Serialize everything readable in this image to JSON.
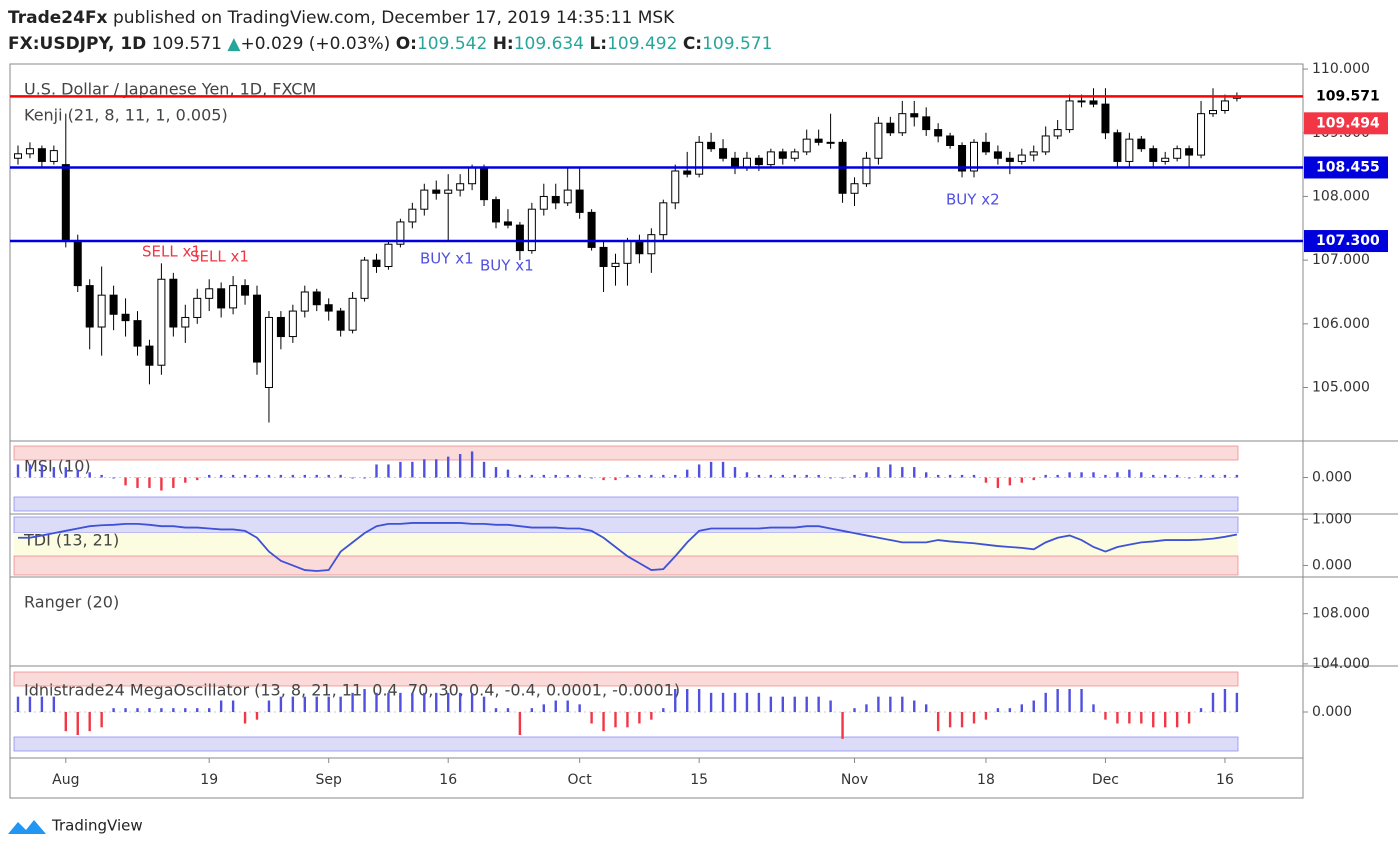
{
  "header": {
    "line1_author": "Trade24Fx",
    "line1_rest": "published on TradingView.com, December 17, 2019 14:35:11 MSK",
    "symbol": "FX:USDJPY, 1D",
    "last": "109.571",
    "arrow": "▲",
    "change": "+0.029 (+0.03%)",
    "o_label": "O:",
    "o": "109.542",
    "h_label": "H:",
    "h": "109.634",
    "l_label": "L:",
    "l": "109.492",
    "c_label": "C:",
    "c": "109.571"
  },
  "footer": {
    "brand": "TradingView"
  },
  "chart_data": [
    {
      "type": "candlestick",
      "title": "U.S. Dollar / Japanese Yen, 1D, FXCM",
      "subtitle": "Kenji (21, 8, 11, 1, 0.005)",
      "ylim": [
        104.16,
        110.08
      ],
      "yticks": [
        {
          "value": 110,
          "label": "110.000"
        },
        {
          "value": 109,
          "label": "109.000"
        },
        {
          "value": 108,
          "label": "108.000"
        },
        {
          "value": 107,
          "label": "107.000"
        },
        {
          "value": 106,
          "label": "106.000"
        },
        {
          "value": 105,
          "label": "105.000"
        }
      ],
      "xticks": [
        {
          "value": 4,
          "label": "Aug"
        },
        {
          "value": 16,
          "label": "19"
        },
        {
          "value": 26,
          "label": "Sep"
        },
        {
          "value": 36,
          "label": "16"
        },
        {
          "value": 47,
          "label": "Oct"
        },
        {
          "value": 57,
          "label": "15"
        },
        {
          "value": 70,
          "label": "Nov"
        },
        {
          "value": 81,
          "label": "18"
        },
        {
          "value": 91,
          "label": "Dec"
        },
        {
          "value": 101,
          "label": "16"
        }
      ],
      "up_color": "#ffffff",
      "down_color": "#000000",
      "levels": [
        {
          "value": 109.571,
          "label": "109.571",
          "color": "#ff0000",
          "badge": "#ffffff",
          "text_color": "#000000"
        },
        {
          "value": 108.455,
          "label": "108.455",
          "color": "#0000dd",
          "badge": "#0000dd",
          "text_color": "#ffffff"
        },
        {
          "value": 107.3,
          "label": "107.300",
          "color": "#0000dd",
          "badge": "#0000dd",
          "text_color": "#ffffff"
        }
      ],
      "badges": [
        {
          "value": 109.494,
          "label": "109.494",
          "badge": "#f23645",
          "text_color": "#ffffff"
        }
      ],
      "annotations": [
        {
          "text": "SELL x1",
          "color": "#f23645"
        },
        {
          "text": "SELL x1",
          "color": "#f23645"
        },
        {
          "text": "BUY x1",
          "color": "#5050e0"
        },
        {
          "text": "BUY x1",
          "color": "#5050e0"
        },
        {
          "text": "BUY x2",
          "color": "#5050e0"
        }
      ],
      "ohlc": [
        [
          108.6,
          108.8,
          108.5,
          108.67
        ],
        [
          108.67,
          108.85,
          108.6,
          108.75
        ],
        [
          108.75,
          108.8,
          108.45,
          108.55
        ],
        [
          108.55,
          108.8,
          108.5,
          108.72
        ],
        [
          108.5,
          109.3,
          107.2,
          107.3
        ],
        [
          107.3,
          107.4,
          106.5,
          106.6
        ],
        [
          106.6,
          106.7,
          105.6,
          105.95
        ],
        [
          105.95,
          106.9,
          105.5,
          106.45
        ],
        [
          106.45,
          106.6,
          105.9,
          106.15
        ],
        [
          106.15,
          106.4,
          105.8,
          106.05
        ],
        [
          106.05,
          106.2,
          105.5,
          105.65
        ],
        [
          105.65,
          105.75,
          105.05,
          105.35
        ],
        [
          105.35,
          106.95,
          105.2,
          106.7
        ],
        [
          106.7,
          106.8,
          105.8,
          105.95
        ],
        [
          105.95,
          106.3,
          105.7,
          106.1
        ],
        [
          106.1,
          106.55,
          106.0,
          106.4
        ],
        [
          106.4,
          106.7,
          106.2,
          106.55
        ],
        [
          106.55,
          106.65,
          106.1,
          106.25
        ],
        [
          106.25,
          106.75,
          106.15,
          106.6
        ],
        [
          106.6,
          106.7,
          106.3,
          106.45
        ],
        [
          106.45,
          106.6,
          105.2,
          105.4
        ],
        [
          105.0,
          106.2,
          104.45,
          106.1
        ],
        [
          106.1,
          106.2,
          105.6,
          105.8
        ],
        [
          105.8,
          106.3,
          105.7,
          106.2
        ],
        [
          106.2,
          106.6,
          106.1,
          106.5
        ],
        [
          106.5,
          106.55,
          106.2,
          106.3
        ],
        [
          106.3,
          106.4,
          106.05,
          106.2
        ],
        [
          106.2,
          106.25,
          105.8,
          105.9
        ],
        [
          105.9,
          106.5,
          105.85,
          106.4
        ],
        [
          106.4,
          107.05,
          106.35,
          107.0
        ],
        [
          107.0,
          107.1,
          106.8,
          106.9
        ],
        [
          106.9,
          107.3,
          106.85,
          107.25
        ],
        [
          107.25,
          107.65,
          107.2,
          107.6
        ],
        [
          107.6,
          107.9,
          107.5,
          107.8
        ],
        [
          107.8,
          108.2,
          107.7,
          108.1
        ],
        [
          108.1,
          108.25,
          107.95,
          108.05
        ],
        [
          108.05,
          108.35,
          107.3,
          108.1
        ],
        [
          108.1,
          108.35,
          108.0,
          108.2
        ],
        [
          108.2,
          108.5,
          108.1,
          108.45
        ],
        [
          108.45,
          108.5,
          107.85,
          107.95
        ],
        [
          107.95,
          108.0,
          107.5,
          107.6
        ],
        [
          107.6,
          107.8,
          107.5,
          107.55
        ],
        [
          107.55,
          107.6,
          107.0,
          107.15
        ],
        [
          107.15,
          107.9,
          107.1,
          107.8
        ],
        [
          107.8,
          108.2,
          107.7,
          108.0
        ],
        [
          108.0,
          108.2,
          107.8,
          107.9
        ],
        [
          107.9,
          108.45,
          107.85,
          108.1
        ],
        [
          108.1,
          108.45,
          107.65,
          107.75
        ],
        [
          107.75,
          107.8,
          107.15,
          107.2
        ],
        [
          107.2,
          107.3,
          106.5,
          106.9
        ],
        [
          106.9,
          107.1,
          106.6,
          106.95
        ],
        [
          106.95,
          107.35,
          106.6,
          107.3
        ],
        [
          107.3,
          107.4,
          106.95,
          107.1
        ],
        [
          107.1,
          107.5,
          106.8,
          107.4
        ],
        [
          107.4,
          107.95,
          107.3,
          107.9
        ],
        [
          107.9,
          108.5,
          107.8,
          108.4
        ],
        [
          108.4,
          108.7,
          108.3,
          108.35
        ],
        [
          108.35,
          108.95,
          108.3,
          108.85
        ],
        [
          108.85,
          109.0,
          108.7,
          108.75
        ],
        [
          108.75,
          108.9,
          108.55,
          108.6
        ],
        [
          108.6,
          108.7,
          108.35,
          108.45
        ],
        [
          108.45,
          108.7,
          108.4,
          108.6
        ],
        [
          108.6,
          108.65,
          108.4,
          108.5
        ],
        [
          108.5,
          108.75,
          108.45,
          108.7
        ],
        [
          108.7,
          108.75,
          108.5,
          108.6
        ],
        [
          108.6,
          108.75,
          108.55,
          108.7
        ],
        [
          108.7,
          109.05,
          108.65,
          108.9
        ],
        [
          108.9,
          109.05,
          108.8,
          108.85
        ],
        [
          108.85,
          109.3,
          108.75,
          108.85
        ],
        [
          108.85,
          108.9,
          107.9,
          108.05
        ],
        [
          108.05,
          108.3,
          107.85,
          108.2
        ],
        [
          108.2,
          108.7,
          108.15,
          108.6
        ],
        [
          108.6,
          109.25,
          108.5,
          109.15
        ],
        [
          109.15,
          109.25,
          108.95,
          109.0
        ],
        [
          109.0,
          109.5,
          108.95,
          109.3
        ],
        [
          109.3,
          109.5,
          109.1,
          109.25
        ],
        [
          109.25,
          109.4,
          108.95,
          109.05
        ],
        [
          109.05,
          109.15,
          108.85,
          108.95
        ],
        [
          108.95,
          109.0,
          108.75,
          108.8
        ],
        [
          108.8,
          108.85,
          108.3,
          108.4
        ],
        [
          108.4,
          108.9,
          108.3,
          108.85
        ],
        [
          108.85,
          109.0,
          108.65,
          108.7
        ],
        [
          108.7,
          108.8,
          108.5,
          108.6
        ],
        [
          108.6,
          108.7,
          108.35,
          108.55
        ],
        [
          108.55,
          108.75,
          108.5,
          108.65
        ],
        [
          108.65,
          108.8,
          108.55,
          108.7
        ],
        [
          108.7,
          109.1,
          108.65,
          108.95
        ],
        [
          108.95,
          109.2,
          108.9,
          109.05
        ],
        [
          109.05,
          109.6,
          109.0,
          109.5
        ],
        [
          109.5,
          109.6,
          109.4,
          109.5
        ],
        [
          109.5,
          109.7,
          109.4,
          109.45
        ],
        [
          109.45,
          109.7,
          108.9,
          109.0
        ],
        [
          109.0,
          109.05,
          108.45,
          108.55
        ],
        [
          108.55,
          109.0,
          108.45,
          108.9
        ],
        [
          108.9,
          108.95,
          108.7,
          108.75
        ],
        [
          108.75,
          108.8,
          108.45,
          108.55
        ],
        [
          108.55,
          108.7,
          108.5,
          108.6
        ],
        [
          108.6,
          108.8,
          108.55,
          108.75
        ],
        [
          108.75,
          108.8,
          108.45,
          108.65
        ],
        [
          108.65,
          109.5,
          108.6,
          109.3
        ],
        [
          109.3,
          109.7,
          109.25,
          109.35
        ],
        [
          109.35,
          109.6,
          109.3,
          109.5
        ],
        [
          109.542,
          109.634,
          109.492,
          109.571
        ]
      ]
    },
    {
      "type": "histogram",
      "title": "MSI (10)",
      "ylim": [
        -1.4,
        1.4
      ],
      "yticks": [
        {
          "value": 0,
          "label": "0.000"
        }
      ],
      "up_color": "#5050e0",
      "down_color": "#f23645",
      "values": [
        0.5,
        0.5,
        0.5,
        0.4,
        0.4,
        0.3,
        0.2,
        0.1,
        0,
        -0.3,
        -0.4,
        -0.4,
        -0.5,
        -0.4,
        -0.2,
        -0.1,
        0.1,
        0.1,
        0.1,
        0.1,
        0.1,
        0.1,
        0.1,
        0.1,
        0.1,
        0.1,
        0.1,
        0.1,
        0,
        0,
        0.5,
        0.5,
        0.6,
        0.6,
        0.7,
        0.7,
        0.8,
        0.9,
        1.0,
        0.6,
        0.4,
        0.3,
        0.1,
        0.1,
        0.1,
        0.1,
        0.1,
        0.1,
        0.0,
        -0.1,
        -0.1,
        0.1,
        0.1,
        0.1,
        0.1,
        0.1,
        0.3,
        0.5,
        0.6,
        0.6,
        0.4,
        0.2,
        0.1,
        0.1,
        0.1,
        0.1,
        0.1,
        0.1,
        0,
        0,
        0.1,
        0.2,
        0.4,
        0.5,
        0.4,
        0.4,
        0.2,
        0.1,
        0.1,
        0.1,
        0.1,
        -0.2,
        -0.4,
        -0.3,
        -0.2,
        -0.1,
        0.1,
        0.1,
        0.2,
        0.2,
        0.2,
        0.1,
        0.2,
        0.3,
        0.2,
        0.1,
        0.1,
        0.1,
        0,
        0.1,
        0.1,
        0.1,
        0.1
      ]
    },
    {
      "type": "line",
      "title": "TDI (13, 21)",
      "ylim": [
        -0.25,
        1.114
      ],
      "yticks": [
        {
          "value": 1,
          "label": "1.000"
        },
        {
          "value": 0,
          "label": "0.000"
        }
      ],
      "color": "#3f51d6",
      "values": [
        0.6,
        0.6,
        0.65,
        0.7,
        0.75,
        0.8,
        0.85,
        0.87,
        0.88,
        0.9,
        0.9,
        0.88,
        0.85,
        0.85,
        0.82,
        0.82,
        0.8,
        0.78,
        0.78,
        0.75,
        0.6,
        0.3,
        0.1,
        0.0,
        -0.1,
        -0.12,
        -0.1,
        0.3,
        0.5,
        0.7,
        0.85,
        0.9,
        0.9,
        0.92,
        0.92,
        0.92,
        0.92,
        0.92,
        0.9,
        0.9,
        0.88,
        0.88,
        0.85,
        0.82,
        0.82,
        0.82,
        0.8,
        0.8,
        0.75,
        0.6,
        0.4,
        0.2,
        0.05,
        -0.1,
        -0.08,
        0.2,
        0.5,
        0.75,
        0.8,
        0.8,
        0.8,
        0.8,
        0.8,
        0.82,
        0.82,
        0.82,
        0.85,
        0.85,
        0.8,
        0.75,
        0.7,
        0.65,
        0.6,
        0.55,
        0.5,
        0.5,
        0.5,
        0.55,
        0.52,
        0.5,
        0.48,
        0.45,
        0.42,
        0.4,
        0.38,
        0.35,
        0.5,
        0.6,
        0.65,
        0.55,
        0.4,
        0.3,
        0.4,
        0.45,
        0.5,
        0.52,
        0.55,
        0.55,
        0.55,
        0.56,
        0.58,
        0.62,
        0.67
      ]
    },
    {
      "type": "empty",
      "title": "Ranger (20)",
      "ylim": [
        103.83,
        110.92
      ],
      "yticks": [
        {
          "value": 108,
          "label": "108.000"
        },
        {
          "value": 104,
          "label": "104.000"
        }
      ]
    },
    {
      "type": "histogram",
      "title": "Idnistrade24 MegaOscillator (13, 8, 21, 11, 0.4, 70, 30, 0.4, -0.4, 0.0001, -0.0001)",
      "ylim": [
        -1.2,
        1.2
      ],
      "yticks": [
        {
          "value": 0,
          "label": "0.000"
        }
      ],
      "up_color": "#5050e0",
      "down_color": "#f23645",
      "values": [
        0.4,
        0.4,
        0.4,
        0.4,
        -0.5,
        -0.6,
        -0.5,
        -0.4,
        0.1,
        0.1,
        0.1,
        0.1,
        0.1,
        0.1,
        0.1,
        0.1,
        0.1,
        0.3,
        0.3,
        -0.3,
        -0.2,
        0.3,
        0.4,
        0.4,
        0.4,
        0.4,
        0.4,
        0.4,
        0.5,
        0.6,
        0.5,
        0.5,
        0.5,
        0.5,
        0.5,
        0.5,
        0.5,
        0.5,
        0.5,
        0.4,
        0.1,
        0.1,
        -0.6,
        0.1,
        0.2,
        0.3,
        0.3,
        0.2,
        -0.3,
        -0.5,
        -0.4,
        -0.4,
        -0.3,
        -0.2,
        0.1,
        0.6,
        0.6,
        0.6,
        0.5,
        0.5,
        0.5,
        0.5,
        0.5,
        0.4,
        0.4,
        0.4,
        0.4,
        0.4,
        0.3,
        -0.7,
        0.1,
        0.2,
        0.4,
        0.4,
        0.4,
        0.3,
        0.2,
        -0.5,
        -0.4,
        -0.4,
        -0.3,
        -0.2,
        0.1,
        0.1,
        0.2,
        0.3,
        0.5,
        0.6,
        0.6,
        0.6,
        0.2,
        -0.2,
        -0.3,
        -0.3,
        -0.3,
        -0.4,
        -0.4,
        -0.4,
        -0.3,
        0.1,
        0.5,
        0.6,
        0.5
      ]
    }
  ]
}
